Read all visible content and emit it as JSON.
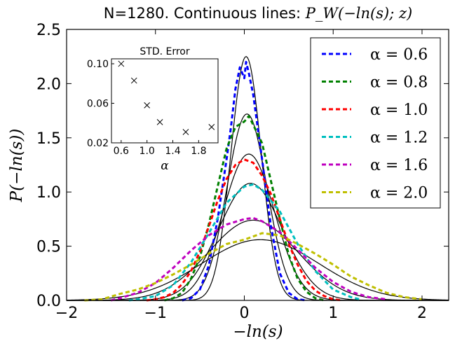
{
  "chart_data": {
    "type": "line",
    "title_prefix": "N=1280. Continuous lines: ",
    "title_math": "P_W(−ln(s); z)",
    "xlabel": "−ln(s)",
    "ylabel": "P(−ln(s))",
    "xlim": [
      -2,
      2.3
    ],
    "ylim": [
      0,
      2.5
    ],
    "x_ticks": [
      -2,
      -1,
      0,
      1,
      2
    ],
    "x_tick_labels": [
      "−2",
      "−1",
      "0",
      "1",
      "2"
    ],
    "y_ticks": [
      0,
      0.5,
      1.0,
      1.5,
      2.0,
      2.5
    ],
    "y_tick_labels": [
      "0.0",
      "0.5",
      "1.0",
      "1.5",
      "2.0",
      "2.5"
    ],
    "legend_position": "top-right",
    "grid": false,
    "series": [
      {
        "name": "α = 0.6",
        "alpha": 0.6,
        "color": "#0000ff",
        "peak": 2.25,
        "std": 0.17,
        "shift": 0.02,
        "noisy_x": [
          -0.7,
          -0.6,
          -0.5,
          -0.4,
          -0.3,
          -0.2,
          -0.15,
          -0.1,
          -0.05,
          0.0,
          0.02,
          0.05,
          0.1,
          0.15,
          0.2,
          0.3,
          0.4,
          0.5,
          0.6,
          0.7
        ],
        "noisy_y": [
          0.0,
          0.02,
          0.1,
          0.32,
          0.75,
          1.3,
          1.6,
          1.95,
          2.15,
          2.05,
          2.2,
          2.1,
          1.9,
          1.6,
          1.3,
          0.68,
          0.25,
          0.07,
          0.01,
          0.0
        ]
      },
      {
        "name": "α = 0.8",
        "alpha": 0.8,
        "color": "#008000",
        "peak": 1.72,
        "std": 0.225,
        "shift": 0.03,
        "noisy_x": [
          -0.9,
          -0.8,
          -0.7,
          -0.6,
          -0.5,
          -0.4,
          -0.3,
          -0.2,
          -0.1,
          0.0,
          0.05,
          0.1,
          0.2,
          0.3,
          0.4,
          0.5,
          0.6,
          0.7,
          0.8,
          0.9
        ],
        "noisy_y": [
          0.0,
          0.02,
          0.07,
          0.2,
          0.4,
          0.7,
          1.05,
          1.4,
          1.6,
          1.65,
          1.7,
          1.62,
          1.45,
          1.1,
          0.75,
          0.42,
          0.2,
          0.08,
          0.02,
          0.0
        ]
      },
      {
        "name": "α = 1.0",
        "alpha": 1.0,
        "color": "#ff0000",
        "peak": 1.35,
        "std": 0.29,
        "shift": 0.05,
        "noisy_x": [
          -1.1,
          -1.0,
          -0.9,
          -0.8,
          -0.7,
          -0.6,
          -0.5,
          -0.4,
          -0.3,
          -0.2,
          -0.1,
          0.0,
          0.1,
          0.2,
          0.3,
          0.4,
          0.5,
          0.6,
          0.7,
          0.8,
          0.9,
          1.0,
          1.1
        ],
        "noisy_y": [
          0.0,
          0.01,
          0.03,
          0.07,
          0.15,
          0.27,
          0.45,
          0.68,
          0.92,
          1.12,
          1.25,
          1.3,
          1.27,
          1.15,
          0.98,
          0.75,
          0.52,
          0.33,
          0.18,
          0.09,
          0.04,
          0.01,
          0.0
        ]
      },
      {
        "name": "α = 1.2",
        "alpha": 1.2,
        "color": "#00bfbf",
        "peak": 1.08,
        "std": 0.36,
        "shift": 0.07,
        "noisy_x": [
          -1.3,
          -1.2,
          -1.0,
          -0.8,
          -0.6,
          -0.4,
          -0.2,
          0.0,
          0.1,
          0.2,
          0.4,
          0.6,
          0.8,
          1.0,
          1.2,
          1.3
        ],
        "noisy_y": [
          0.0,
          0.01,
          0.04,
          0.14,
          0.35,
          0.62,
          0.9,
          1.05,
          1.07,
          1.02,
          0.82,
          0.52,
          0.27,
          0.1,
          0.03,
          0.01
        ]
      },
      {
        "name": "α = 1.6",
        "alpha": 1.6,
        "color": "#bf00bf",
        "peak": 0.74,
        "std": 0.5,
        "shift": 0.1,
        "noisy_x": [
          -1.5,
          -1.4,
          -1.2,
          -1.0,
          -0.8,
          -0.6,
          -0.4,
          -0.2,
          0.0,
          0.1,
          0.2,
          0.4,
          0.6,
          0.8,
          1.0,
          1.2,
          1.4,
          1.6
        ],
        "noisy_y": [
          0.0,
          0.02,
          0.07,
          0.16,
          0.3,
          0.46,
          0.6,
          0.7,
          0.75,
          0.76,
          0.73,
          0.63,
          0.47,
          0.3,
          0.17,
          0.08,
          0.03,
          0.01
        ]
      },
      {
        "name": "α = 2.0",
        "alpha": 2.0,
        "color": "#bfbf00",
        "peak": 0.56,
        "std": 0.66,
        "shift": 0.18,
        "noisy_x": [
          -1.8,
          -1.6,
          -1.4,
          -1.2,
          -1.0,
          -0.8,
          -0.6,
          -0.4,
          -0.2,
          0.0,
          0.2,
          0.4,
          0.6,
          0.8,
          1.0,
          1.2,
          1.4,
          1.6,
          1.8,
          2.0
        ],
        "noisy_y": [
          0.0,
          0.01,
          0.06,
          0.1,
          0.16,
          0.24,
          0.33,
          0.43,
          0.52,
          0.56,
          0.62,
          0.6,
          0.52,
          0.43,
          0.33,
          0.22,
          0.14,
          0.07,
          0.03,
          0.01
        ]
      }
    ],
    "inset": {
      "title": "STD. Error",
      "type": "scatter",
      "marker": "x",
      "xlabel": "α",
      "xlim": [
        0.45,
        2.1
      ],
      "ylim": [
        0.02,
        0.105
      ],
      "x_ticks": [
        0.6,
        1.0,
        1.4,
        1.8
      ],
      "x_tick_labels": [
        "0.6",
        "1.0",
        "1.4",
        "1.8"
      ],
      "y_ticks": [
        0.02,
        0.06,
        0.1
      ],
      "y_tick_labels": [
        "0.02",
        "0.06",
        "0.10"
      ],
      "x": [
        0.6,
        0.8,
        1.0,
        1.2,
        1.6,
        2.0
      ],
      "y": [
        0.1,
        0.083,
        0.058,
        0.041,
        0.031,
        0.036
      ]
    }
  }
}
